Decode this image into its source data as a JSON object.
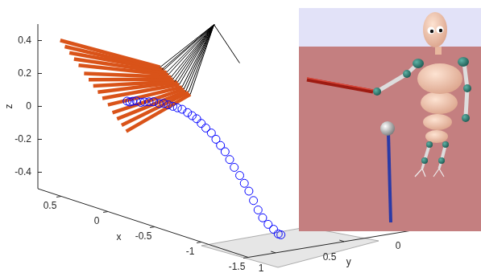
{
  "chart_data": {
    "type": "scatter",
    "x_label": "x",
    "y_label": "y",
    "z_label": "z",
    "xlim": [
      -1.5,
      0.75
    ],
    "ylim": [
      -0.1,
      1.2
    ],
    "zlim": [
      -0.5,
      0.5
    ],
    "xticks": [
      -1.5,
      -1,
      -0.5,
      0,
      0.5
    ],
    "yticks": [
      0,
      0.5,
      1
    ],
    "zticks": [
      -0.4,
      -0.2,
      0,
      0.2,
      0.4
    ],
    "grid": false,
    "series": [
      {
        "type": "scatter",
        "color": "#0000ff",
        "marker": "circle",
        "line_style": "none",
        "x": [
          0.26,
          0.23,
          0.2,
          0.16,
          0.11,
          0.07,
          0.02,
          -0.03,
          -0.09,
          -0.14,
          -0.19,
          -0.24,
          -0.29,
          -0.34,
          -0.4,
          -0.45,
          -0.5,
          -0.55,
          -0.6,
          -0.66,
          -0.71,
          -0.76,
          -0.81,
          -0.86,
          -0.91,
          -0.97,
          -1.02,
          -1.07,
          -1.12,
          -1.17,
          -1.22,
          -1.28,
          -1.34,
          -1.39,
          -1.42
        ],
        "y": [
          0.9,
          0.9,
          0.9,
          0.9,
          0.9,
          0.9,
          0.9,
          0.9,
          0.9,
          0.9,
          0.9,
          0.9,
          0.9,
          0.9,
          0.9,
          0.9,
          0.9,
          0.9,
          0.9,
          0.9,
          0.9,
          0.9,
          0.9,
          0.9,
          0.9,
          0.9,
          0.9,
          0.9,
          0.9,
          0.9,
          0.9,
          0.9,
          0.9,
          0.9,
          0.9
        ],
        "z": [
          0.09,
          0.09,
          0.1,
          0.11,
          0.11,
          0.12,
          0.13,
          0.14,
          0.14,
          0.15,
          0.15,
          0.15,
          0.15,
          0.15,
          0.14,
          0.13,
          0.12,
          0.1,
          0.08,
          0.06,
          0.03,
          0,
          -0.03,
          -0.07,
          -0.11,
          -0.15,
          -0.19,
          -0.23,
          -0.28,
          -0.33,
          -0.37,
          -0.4,
          -0.42,
          -0.44,
          -0.44
        ]
      },
      {
        "type": "segments",
        "color": "#000000",
        "line_style": "solid",
        "from": {
          "x": [
            0.35,
            0.63,
            0.63,
            0.63,
            0.63,
            0.63,
            0.63,
            0.63,
            0.63,
            0.63,
            0.63,
            0.63,
            0.63,
            0.63,
            0.63,
            0.63
          ],
          "y": [
            0,
            0,
            0,
            0,
            0,
            0,
            0,
            0,
            0,
            0,
            0,
            0,
            0,
            0,
            0,
            0
          ],
          "z": [
            0.19,
            0.38,
            0.38,
            0.38,
            0.38,
            0.38,
            0.38,
            0.38,
            0.38,
            0.38,
            0.38,
            0.38,
            0.38,
            0.38,
            0.38,
            0.38
          ]
        },
        "to": {
          "x": [
            0.63,
            -0.1,
            -0.12,
            -0.14,
            -0.17,
            -0.19,
            -0.22,
            -0.24,
            -0.26,
            -0.29,
            -0.31,
            -0.34,
            -0.36,
            -0.38,
            -0.41,
            -0.43
          ],
          "y": [
            0,
            0.9,
            0.9,
            0.9,
            0.9,
            0.9,
            0.9,
            0.9,
            0.9,
            0.9,
            0.9,
            0.9,
            0.9,
            0.9,
            0.9,
            0.9
          ],
          "z": [
            0.38,
            0.37,
            0.36,
            0.36,
            0.35,
            0.34,
            0.33,
            0.32,
            0.31,
            0.31,
            0.3,
            0.29,
            0.28,
            0.27,
            0.27,
            0.26
          ]
        }
      },
      {
        "type": "segments",
        "color": "#d95319",
        "line_style": "solid",
        "from": {
          "x": [
            -0.1,
            -0.12,
            -0.14,
            -0.17,
            -0.19,
            -0.22,
            -0.24,
            -0.26,
            -0.29,
            -0.31,
            -0.34,
            -0.36,
            -0.38,
            -0.41,
            -0.43
          ],
          "y": [
            0.9,
            0.9,
            0.9,
            0.9,
            0.9,
            0.9,
            0.9,
            0.9,
            0.9,
            0.9,
            0.9,
            0.9,
            0.9,
            0.9,
            0.9
          ],
          "z": [
            0.37,
            0.36,
            0.36,
            0.35,
            0.34,
            0.33,
            0.32,
            0.31,
            0.31,
            0.3,
            0.29,
            0.28,
            0.27,
            0.27,
            0.26
          ]
        },
        "to": {
          "x": [
            0.55,
            0.5,
            0.45,
            0.4,
            0.35,
            0.29,
            0.24,
            0.19,
            0.14,
            0.09,
            0.03,
            -0.02,
            -0.07,
            -0.12,
            -0.17
          ],
          "y": [
            1.2,
            1.2,
            1.2,
            1.2,
            1.2,
            1.2,
            1.2,
            1.2,
            1.2,
            1.2,
            1.2,
            1.2,
            1.2,
            1.2,
            1.2
          ],
          "z": [
            0.46,
            0.43,
            0.4,
            0.37,
            0.34,
            0.3,
            0.27,
            0.24,
            0.21,
            0.18,
            0.15,
            0.11,
            0.08,
            0.05,
            0.02
          ]
        }
      }
    ]
  }
}
